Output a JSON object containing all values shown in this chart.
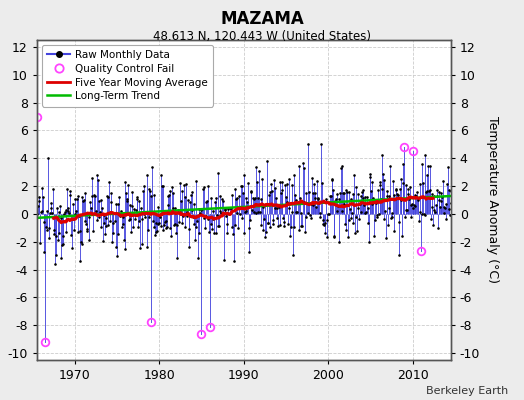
{
  "title": "MAZAMA",
  "subtitle": "48.613 N, 120.443 W (United States)",
  "ylabel": "Temperature Anomaly (°C)",
  "credit": "Berkeley Earth",
  "ylim": [
    -10.5,
    12.5
  ],
  "xlim": [
    1965.5,
    2014.5
  ],
  "xticks": [
    1970,
    1980,
    1990,
    2000,
    2010
  ],
  "yticks": [
    -10,
    -8,
    -6,
    -4,
    -2,
    0,
    2,
    4,
    6,
    8,
    10,
    12
  ],
  "bg_color": "#ececec",
  "plot_bg_color": "#ffffff",
  "raw_line_color": "#4444dd",
  "raw_marker_color": "#000000",
  "qc_fail_color": "#ff44ff",
  "moving_avg_color": "#dd0000",
  "trend_color": "#00bb00",
  "seed": 12345,
  "start_year": 1965.0,
  "end_year": 2014.917,
  "n_months": 600
}
